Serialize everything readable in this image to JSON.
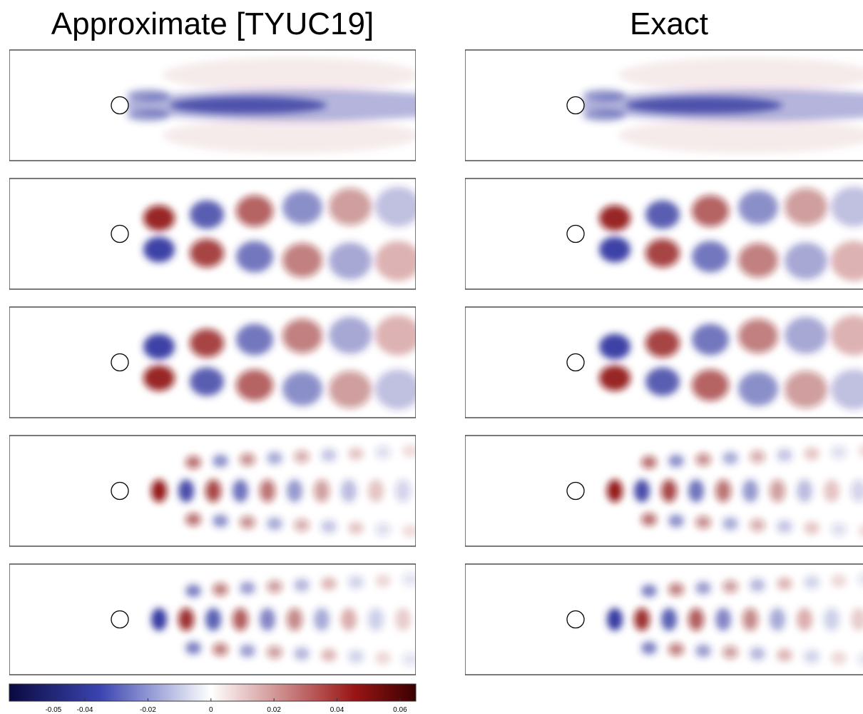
{
  "titles": [
    "Approximate [TYUC19]",
    "Exact"
  ],
  "chart_data": {
    "type": "colorbar",
    "xlim": [
      -0.064,
      0.065
    ],
    "xticks": [
      -0.05,
      -0.04,
      -0.02,
      0,
      0.02,
      0.04,
      0.06
    ]
  }
}
